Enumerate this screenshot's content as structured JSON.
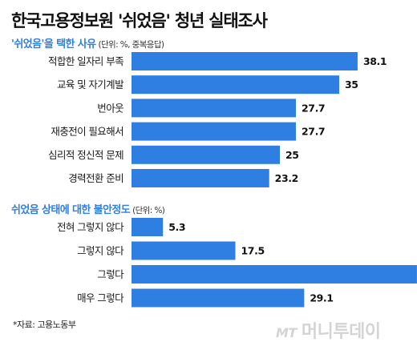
{
  "title": "한국고용정보원 '쉬었음' 청년 실태조사",
  "chart_data": [
    {
      "type": "bar",
      "orientation": "horizontal",
      "title": "'쉬었음'을 택한 사유",
      "unit_note": "(단위: %, 중복응답)",
      "categories": [
        "적합한 일자리 부족",
        "교육 및 자기계발",
        "번아웃",
        "재충전이 필요해서",
        "심리적 정신적 문제",
        "경력전환 준비"
      ],
      "values": [
        38.1,
        35,
        27.7,
        27.7,
        25,
        23.2
      ],
      "value_labels": [
        "38.1",
        "35",
        "27.7",
        "27.7",
        "25",
        "23.2"
      ],
      "bar_color": "#2f7fe3"
    },
    {
      "type": "bar",
      "orientation": "horizontal",
      "title": "쉬었음 상태에 대한 불안정도",
      "unit_note": "(단위: %)",
      "categories": [
        "전혀 그렇지 않다",
        "그렇지 않다",
        "그렇다",
        "매우 그렇다"
      ],
      "values": [
        5.3,
        17.5,
        48.1,
        29.1
      ],
      "value_labels": [
        "5.3",
        "17.5",
        "48.1",
        "29.1"
      ],
      "bar_color": "#2f7fe3"
    }
  ],
  "source": "*자료: 고용노동부",
  "watermark": {
    "mt": "MT",
    "brand": "머니투데이"
  }
}
